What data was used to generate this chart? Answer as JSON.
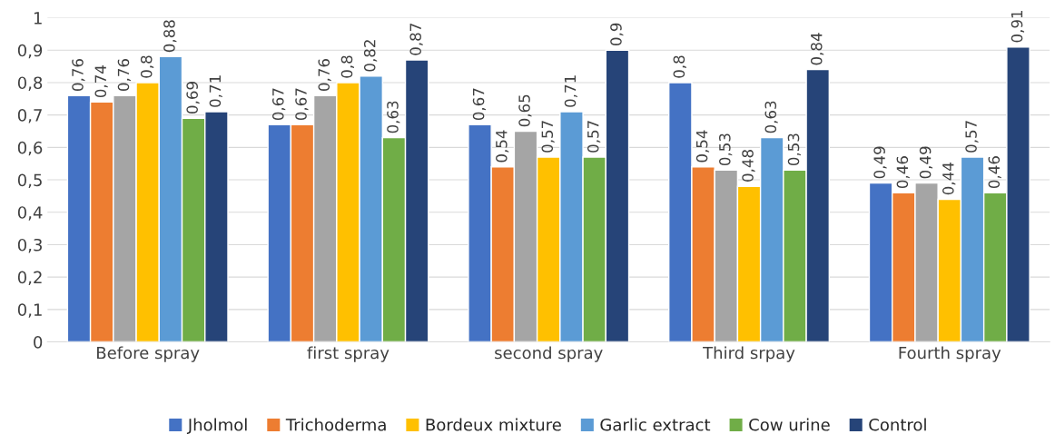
{
  "chart_data": {
    "type": "bar",
    "categories": [
      "Before spray",
      "first spray",
      "second spray",
      "Third srpay",
      "Fourth spray"
    ],
    "series": [
      {
        "name": "Jholmol",
        "color": "#4472c4",
        "values": [
          0.76,
          0.67,
          0.67,
          0.8,
          0.49
        ],
        "value_labels": [
          "0,76",
          "0,67",
          "0,67",
          "0,8",
          "0,49"
        ]
      },
      {
        "name": "Trichoderma",
        "color": "#ed7d31",
        "values": [
          0.74,
          0.67,
          0.54,
          0.54,
          0.46
        ],
        "value_labels": [
          "0,74",
          "0,67",
          "0,54",
          "0,54",
          "0,46"
        ]
      },
      {
        "color": "#a5a5a5",
        "values": [
          0.76,
          0.76,
          0.65,
          0.53,
          0.49
        ],
        "value_labels": [
          "0,76",
          "0,76",
          "0,65",
          "0,53",
          "0,49"
        ]
      },
      {
        "name": "Bordeux mixture",
        "color": "#ffc000",
        "values": [
          0.8,
          0.8,
          0.57,
          0.48,
          0.44
        ],
        "value_labels": [
          "0,8",
          "0,8",
          "0,57",
          "0,48",
          "0,44"
        ]
      },
      {
        "name": "Garlic extract",
        "color": "#5b9bd5",
        "values": [
          0.88,
          0.82,
          0.71,
          0.63,
          0.57
        ],
        "value_labels": [
          "0,88",
          "0,82",
          "0,71",
          "0,63",
          "0,57"
        ]
      },
      {
        "name": "Cow urine",
        "color": "#70ad47",
        "values": [
          0.69,
          0.63,
          0.57,
          0.53,
          0.46
        ],
        "value_labels": [
          "0,69",
          "0,63",
          "0,57",
          "0,53",
          "0,46"
        ]
      },
      {
        "name": "Control",
        "color": "#264478",
        "values": [
          0.71,
          0.87,
          0.9,
          0.84,
          0.91
        ],
        "value_labels": [
          "0,71",
          "0,87",
          "0,9",
          "0,84",
          "0,91"
        ]
      }
    ],
    "ylim": [
      0,
      1
    ],
    "yticks": [
      0,
      {
        "value": 0.1,
        "label": "0,1"
      },
      {
        "value": 0.2,
        "label": "0,2"
      },
      {
        "value": 0.3,
        "label": "0,3"
      },
      {
        "value": 0.4,
        "label": "0,4"
      },
      {
        "value": 0.5,
        "label": "0,5"
      },
      {
        "value": 0.6,
        "label": "0,6"
      },
      {
        "value": 0.7,
        "label": "0,7"
      },
      {
        "value": 0.8,
        "label": "0,8"
      },
      {
        "value": 0.9,
        "label": "0,9"
      },
      1
    ],
    "grid": "y",
    "legend": "bottom"
  }
}
